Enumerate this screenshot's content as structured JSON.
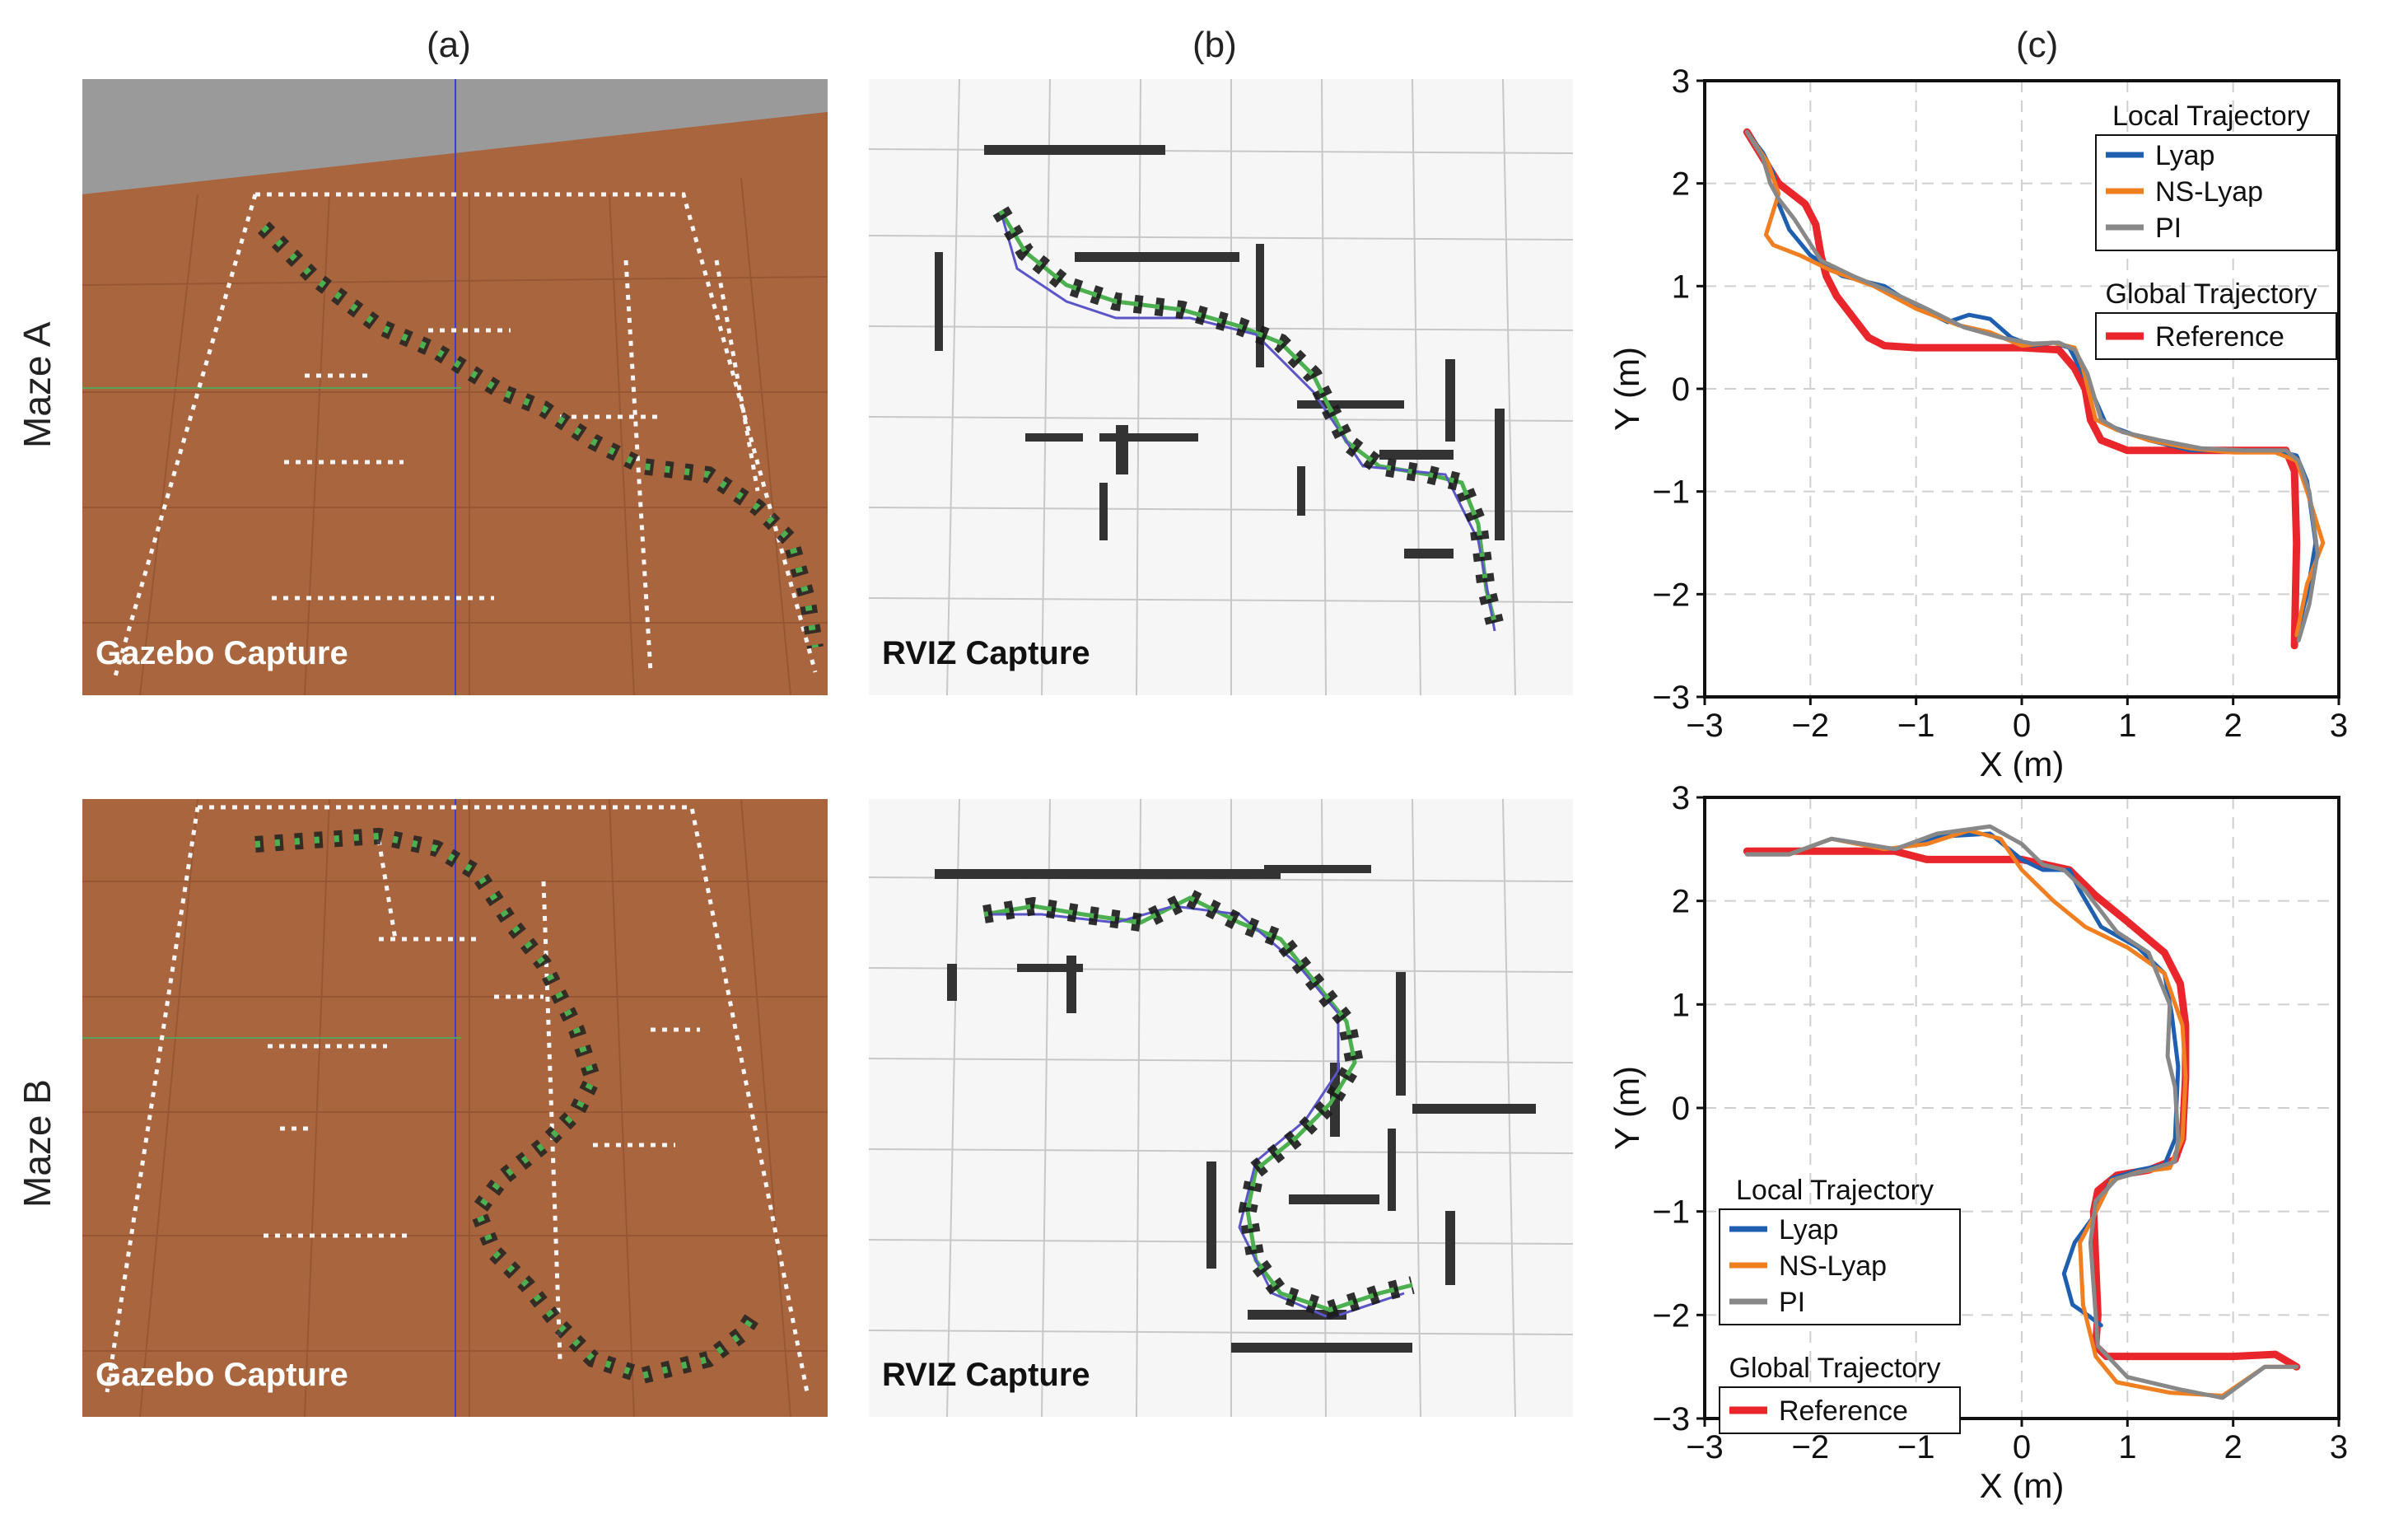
{
  "column_labels": {
    "a": "(a)",
    "b": "(b)",
    "c": "(c)"
  },
  "row_labels": {
    "a": "Maze A",
    "b": "Maze B"
  },
  "captions": {
    "gazebo": "Gazebo Capture",
    "rviz": "RVIZ Capture"
  },
  "colors": {
    "lyap": "#1f5fb0",
    "ns_lyap": "#f07f22",
    "pi": "#888888",
    "reference": "#e8262b",
    "gazebo_floor": "#a9653e",
    "robot": "#4caf50"
  },
  "chart_data": [
    {
      "type": "line",
      "title": "",
      "xlabel": "X (m)",
      "ylabel": "Y (m)",
      "xlim": [
        -3,
        3
      ],
      "ylim": [
        -3,
        3
      ],
      "xticks": [
        "−3",
        "−2",
        "−1",
        "0",
        "1",
        "2",
        "3"
      ],
      "yticks": [
        "3",
        "2",
        "1",
        "0",
        "−1",
        "−2",
        "−3"
      ],
      "grid": true,
      "legend": {
        "position": "top-right",
        "local_title": "Local Trajectory",
        "global_title": "Global Trajectory",
        "entries": [
          "Lyap",
          "NS-Lyap",
          "PI",
          "Reference"
        ]
      },
      "series": [
        {
          "name": "Reference",
          "color": "#e8262b",
          "x": [
            -2.6,
            -2.3,
            -2.05,
            -1.95,
            -1.9,
            -1.85,
            -1.75,
            -1.6,
            -1.45,
            -1.3,
            -1.0,
            -0.5,
            0.0,
            0.35,
            0.5,
            0.6,
            0.65,
            0.75,
            1.0,
            1.5,
            2.0,
            2.5,
            2.58,
            2.6,
            2.58
          ],
          "y": [
            2.5,
            2.0,
            1.8,
            1.6,
            1.3,
            1.1,
            0.9,
            0.7,
            0.5,
            0.42,
            0.4,
            0.4,
            0.4,
            0.38,
            0.2,
            0.0,
            -0.3,
            -0.5,
            -0.6,
            -0.6,
            -0.6,
            -0.6,
            -0.8,
            -1.5,
            -2.5
          ]
        },
        {
          "name": "Lyap",
          "color": "#1f5fb0",
          "x": [
            -2.6,
            -2.45,
            -2.35,
            -2.3,
            -2.2,
            -2.0,
            -1.7,
            -1.3,
            -1.0,
            -0.7,
            -0.5,
            -0.3,
            -0.1,
            0.1,
            0.3,
            0.45,
            0.55,
            0.65,
            0.8,
            1.2,
            1.6,
            2.0,
            2.4,
            2.6,
            2.7,
            2.78,
            2.7,
            2.6
          ],
          "y": [
            2.5,
            2.3,
            2.1,
            1.8,
            1.55,
            1.3,
            1.1,
            1.0,
            0.8,
            0.65,
            0.72,
            0.68,
            0.5,
            0.42,
            0.45,
            0.4,
            0.2,
            0.0,
            -0.35,
            -0.5,
            -0.6,
            -0.6,
            -0.6,
            -0.65,
            -0.9,
            -1.5,
            -2.0,
            -2.4
          ]
        },
        {
          "name": "NS-Lyap",
          "color": "#f07f22",
          "x": [
            -2.6,
            -2.4,
            -2.3,
            -2.42,
            -2.35,
            -2.1,
            -1.8,
            -1.4,
            -1.0,
            -0.6,
            -0.3,
            0.0,
            0.3,
            0.5,
            0.58,
            0.7,
            0.9,
            1.2,
            1.6,
            2.0,
            2.4,
            2.6,
            2.7,
            2.85,
            2.7,
            2.6
          ],
          "y": [
            2.5,
            2.2,
            1.9,
            1.5,
            1.4,
            1.3,
            1.15,
            1.0,
            0.78,
            0.62,
            0.55,
            0.42,
            0.45,
            0.4,
            0.2,
            -0.3,
            -0.4,
            -0.5,
            -0.58,
            -0.62,
            -0.62,
            -0.7,
            -1.0,
            -1.5,
            -1.9,
            -2.4
          ]
        },
        {
          "name": "PI",
          "color": "#888888",
          "x": [
            -2.6,
            -2.45,
            -2.38,
            -2.3,
            -2.15,
            -1.9,
            -1.6,
            -1.25,
            -0.9,
            -0.55,
            -0.2,
            0.1,
            0.35,
            0.5,
            0.62,
            0.75,
            0.95,
            1.3,
            1.7,
            2.1,
            2.5,
            2.62,
            2.72,
            2.8,
            2.72,
            2.62
          ],
          "y": [
            2.5,
            2.25,
            2.0,
            1.85,
            1.65,
            1.25,
            1.1,
            0.95,
            0.78,
            0.6,
            0.5,
            0.44,
            0.45,
            0.38,
            0.15,
            -0.3,
            -0.42,
            -0.5,
            -0.58,
            -0.6,
            -0.6,
            -0.7,
            -1.0,
            -1.6,
            -2.1,
            -2.45
          ]
        }
      ]
    },
    {
      "type": "line",
      "title": "",
      "xlabel": "X (m)",
      "ylabel": "Y (m)",
      "xlim": [
        -3,
        3
      ],
      "ylim": [
        -3,
        3
      ],
      "xticks": [
        "−3",
        "−2",
        "−1",
        "0",
        "1",
        "2",
        "3"
      ],
      "yticks": [
        "3",
        "2",
        "1",
        "0",
        "−1",
        "−2",
        "−3"
      ],
      "grid": true,
      "legend": {
        "position": "bottom-left",
        "local_title": "Local Trajectory",
        "global_title": "Global Trajectory",
        "entries": [
          "Lyap",
          "NS-Lyap",
          "PI",
          "Reference"
        ]
      },
      "series": [
        {
          "name": "Reference",
          "color": "#e8262b",
          "x": [
            -2.6,
            -2.0,
            -1.2,
            -0.9,
            0.0,
            0.45,
            0.7,
            1.0,
            1.35,
            1.5,
            1.55,
            1.55,
            1.52,
            1.45,
            1.2,
            0.9,
            0.72,
            0.68,
            0.7,
            0.72,
            0.7,
            0.8,
            1.2,
            2.0,
            2.4,
            2.6
          ],
          "y": [
            2.48,
            2.48,
            2.48,
            2.4,
            2.4,
            2.3,
            2.05,
            1.8,
            1.5,
            1.2,
            0.8,
            0.3,
            -0.3,
            -0.5,
            -0.6,
            -0.65,
            -0.8,
            -1.0,
            -1.5,
            -2.0,
            -2.3,
            -2.4,
            -2.4,
            -2.4,
            -2.38,
            -2.5
          ]
        },
        {
          "name": "Lyap",
          "color": "#1f5fb0",
          "x": [
            -2.6,
            -2.2,
            -1.8,
            -1.2,
            -0.8,
            -0.3,
            0.0,
            0.2,
            0.45,
            0.55,
            0.75,
            1.1,
            1.35,
            1.42,
            1.48,
            1.45,
            1.35,
            1.1,
            0.85,
            0.68,
            0.5,
            0.4,
            0.48,
            0.62,
            0.75
          ],
          "y": [
            2.45,
            2.45,
            2.6,
            2.5,
            2.62,
            2.65,
            2.4,
            2.3,
            2.3,
            2.1,
            1.75,
            1.55,
            1.3,
            0.9,
            0.4,
            -0.3,
            -0.55,
            -0.6,
            -0.68,
            -1.05,
            -1.3,
            -1.6,
            -1.9,
            -2.0,
            -2.1
          ]
        },
        {
          "name": "NS-Lyap",
          "color": "#f07f22",
          "x": [
            -2.6,
            -2.2,
            -1.8,
            -1.3,
            -0.9,
            -0.5,
            -0.2,
            0.0,
            0.3,
            0.6,
            1.0,
            1.35,
            1.52,
            1.55,
            1.52,
            1.4,
            1.1,
            0.85,
            0.68,
            0.55,
            0.58,
            0.7,
            0.9,
            1.4,
            1.9,
            2.3,
            2.6
          ],
          "y": [
            2.45,
            2.45,
            2.6,
            2.5,
            2.55,
            2.68,
            2.6,
            2.3,
            2.0,
            1.75,
            1.55,
            1.3,
            0.8,
            0.3,
            -0.3,
            -0.58,
            -0.62,
            -0.7,
            -1.05,
            -1.3,
            -1.9,
            -2.4,
            -2.65,
            -2.75,
            -2.78,
            -2.5,
            -2.5
          ]
        },
        {
          "name": "PI",
          "color": "#888888",
          "x": [
            -2.6,
            -2.2,
            -1.8,
            -1.2,
            -0.8,
            -0.3,
            0.0,
            0.2,
            0.4,
            0.6,
            0.9,
            1.2,
            1.4,
            1.38,
            1.45,
            1.48,
            1.45,
            1.2,
            0.9,
            0.7,
            0.65,
            0.72,
            1.0,
            1.5,
            1.9,
            2.3,
            2.6
          ],
          "y": [
            2.45,
            2.45,
            2.6,
            2.5,
            2.65,
            2.72,
            2.55,
            2.35,
            2.3,
            2.1,
            1.7,
            1.5,
            1.0,
            0.5,
            0.2,
            -0.3,
            -0.52,
            -0.6,
            -0.68,
            -0.9,
            -1.3,
            -2.3,
            -2.6,
            -2.72,
            -2.8,
            -2.5,
            -2.5
          ]
        }
      ]
    }
  ]
}
